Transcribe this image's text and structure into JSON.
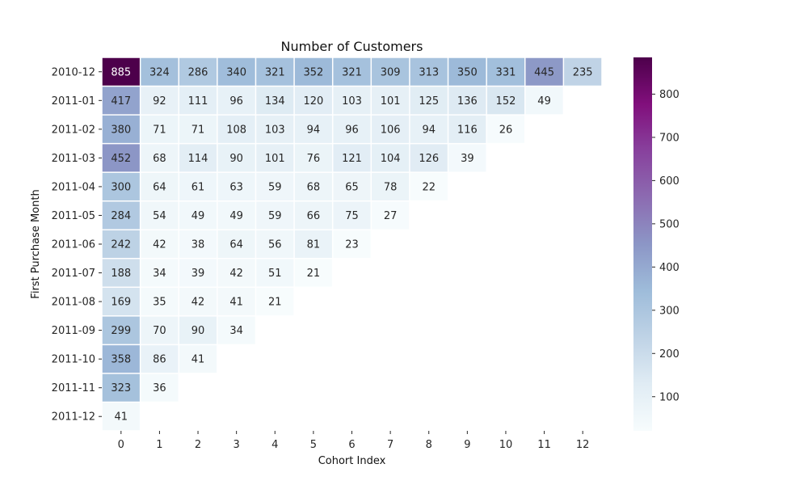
{
  "chart_data": {
    "type": "heatmap",
    "title": "Number of Customers",
    "xlabel": "Cohort Index",
    "ylabel": "First Purchase Month",
    "x_categories": [
      "0",
      "1",
      "2",
      "3",
      "4",
      "5",
      "6",
      "7",
      "8",
      "9",
      "10",
      "11",
      "12"
    ],
    "y_categories": [
      "2010-12",
      "2011-01",
      "2011-02",
      "2011-03",
      "2011-04",
      "2011-05",
      "2011-06",
      "2011-07",
      "2011-08",
      "2011-09",
      "2011-10",
      "2011-11",
      "2011-12"
    ],
    "values": [
      [
        885,
        324,
        286,
        340,
        321,
        352,
        321,
        309,
        313,
        350,
        331,
        445,
        235
      ],
      [
        417,
        92,
        111,
        96,
        134,
        120,
        103,
        101,
        125,
        136,
        152,
        49,
        null
      ],
      [
        380,
        71,
        71,
        108,
        103,
        94,
        96,
        106,
        94,
        116,
        26,
        null,
        null
      ],
      [
        452,
        68,
        114,
        90,
        101,
        76,
        121,
        104,
        126,
        39,
        null,
        null,
        null
      ],
      [
        300,
        64,
        61,
        63,
        59,
        68,
        65,
        78,
        22,
        null,
        null,
        null,
        null
      ],
      [
        284,
        54,
        49,
        49,
        59,
        66,
        75,
        27,
        null,
        null,
        null,
        null,
        null
      ],
      [
        242,
        42,
        38,
        64,
        56,
        81,
        23,
        null,
        null,
        null,
        null,
        null,
        null
      ],
      [
        188,
        34,
        39,
        42,
        51,
        21,
        null,
        null,
        null,
        null,
        null,
        null,
        null
      ],
      [
        169,
        35,
        42,
        41,
        21,
        null,
        null,
        null,
        null,
        null,
        null,
        null,
        null
      ],
      [
        299,
        70,
        90,
        34,
        null,
        null,
        null,
        null,
        null,
        null,
        null,
        null,
        null
      ],
      [
        358,
        86,
        41,
        null,
        null,
        null,
        null,
        null,
        null,
        null,
        null,
        null,
        null
      ],
      [
        323,
        36,
        null,
        null,
        null,
        null,
        null,
        null,
        null,
        null,
        null,
        null,
        null
      ],
      [
        41,
        null,
        null,
        null,
        null,
        null,
        null,
        null,
        null,
        null,
        null,
        null,
        null
      ]
    ],
    "colormap": "BuPu",
    "colorbar": {
      "range": [
        21,
        885
      ],
      "ticks": [
        100,
        200,
        300,
        400,
        500,
        600,
        700,
        800
      ]
    },
    "annotated": true,
    "grid": false
  }
}
